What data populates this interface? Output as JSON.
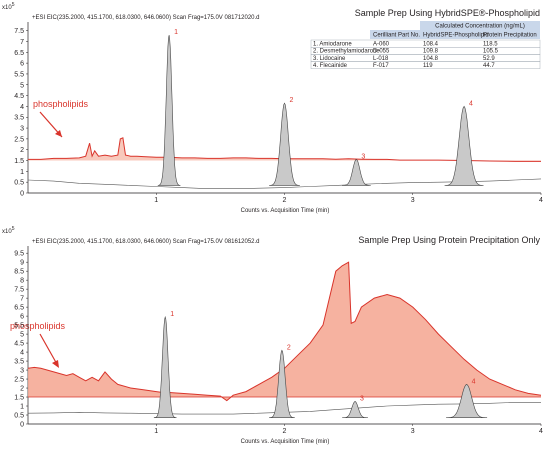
{
  "chart_data": [
    {
      "type": "line",
      "scale_label": "x10",
      "scale_exp": "5",
      "header": "+ESI EIC(235.2000, 415.1700, 618.0300, 646.0600) Scan Frag=175.0V 081712020.d",
      "title": "Sample Prep Using HybridSPE®-Phospholipid",
      "xlabel": "Counts vs. Acquisition Time (min)",
      "xlim": [
        0,
        4
      ],
      "ylim": [
        0,
        7.9
      ],
      "yticks": [
        "0",
        "0.5",
        "1",
        "1.5",
        "2",
        "2.5",
        "3",
        "3.5",
        "4",
        "4.5",
        "5",
        "5.5",
        "6",
        "6.5",
        "7",
        "7.5"
      ],
      "xticks": [
        "1",
        "2",
        "3",
        "4"
      ],
      "annotation": "phospholipids",
      "peaks": [
        {
          "label": "1",
          "x": 1.1,
          "height": 7.3,
          "width": 0.022
        },
        {
          "label": "2",
          "x": 2.0,
          "height": 4.15,
          "width": 0.03
        },
        {
          "label": "3",
          "x": 2.56,
          "height": 1.55,
          "width": 0.028
        },
        {
          "label": "4",
          "x": 3.4,
          "height": 4.0,
          "width": 0.038
        }
      ],
      "series": [
        {
          "color": "#d9342b",
          "x": [
            0,
            0.1,
            0.2,
            0.3,
            0.4,
            0.45,
            0.48,
            0.5,
            0.52,
            0.55,
            0.6,
            0.65,
            0.7,
            0.72,
            0.74,
            0.76,
            0.8,
            0.85,
            0.9,
            1.0,
            1.1,
            1.2,
            1.3,
            1.4,
            1.5,
            1.6,
            1.7,
            1.8,
            1.9,
            2.0,
            2.1,
            2.2,
            2.3,
            2.4,
            2.5,
            2.6,
            2.7,
            2.8,
            2.9,
            3.0,
            3.2,
            3.4,
            3.6,
            3.8,
            4.0
          ],
          "y": [
            1.55,
            1.55,
            1.6,
            1.6,
            1.62,
            1.7,
            2.3,
            1.7,
            1.95,
            1.7,
            1.75,
            1.7,
            1.75,
            2.5,
            2.55,
            1.75,
            1.7,
            1.7,
            1.68,
            1.65,
            1.65,
            1.62,
            1.62,
            1.6,
            1.6,
            1.62,
            1.62,
            1.6,
            1.6,
            1.58,
            1.58,
            1.58,
            1.58,
            1.56,
            1.58,
            1.56,
            1.55,
            1.55,
            1.52,
            1.52,
            1.52,
            1.5,
            1.48,
            1.46,
            1.46
          ]
        },
        {
          "color": "#555555",
          "x": [
            0,
            0.2,
            0.4,
            0.6,
            0.8,
            1.0,
            1.2,
            1.4,
            1.6,
            1.8,
            2.0,
            2.2,
            2.4,
            2.6,
            2.8,
            3.0,
            3.2,
            3.4,
            3.6,
            3.8,
            4.0
          ],
          "y": [
            0.6,
            0.55,
            0.45,
            0.4,
            0.35,
            0.3,
            0.25,
            0.2,
            0.2,
            0.22,
            0.25,
            0.3,
            0.35,
            0.4,
            0.45,
            0.48,
            0.5,
            0.52,
            0.55,
            0.6,
            0.65
          ]
        }
      ],
      "legend_table": {
        "group_header": "Calculated Concentration (ng/mL)",
        "columns": [
          "",
          "Cerilliant Part No.",
          "HybridSPE-Phospholipid",
          "Protein Precipitation"
        ],
        "rows": [
          [
            "1. Amiodarone",
            "A-060",
            "108.4",
            "118.5"
          ],
          [
            "2. Desmethylamiodarone",
            "D-055",
            "109.8",
            "105.5"
          ],
          [
            "3. Lidocaine",
            "L-018",
            "104.8",
            "52.9"
          ],
          [
            "4. Flecainide",
            "F-017",
            "119",
            "44.7"
          ]
        ]
      }
    },
    {
      "type": "area",
      "scale_label": "x10",
      "scale_exp": "5",
      "header": "+ESI EIC(235.2000, 415.1700, 618.0300, 646.0600) Scan Frag=175.0V 081612052.d",
      "title": "Sample Prep Using Protein Precipitation Only",
      "xlabel": "Counts vs. Acquisition Time (min)",
      "xlim": [
        0,
        4
      ],
      "ylim": [
        0,
        9.9
      ],
      "yticks": [
        "0",
        "0.5",
        "1",
        "1.5",
        "2",
        "2.5",
        "3",
        "3.5",
        "4",
        "4.5",
        "5",
        "5.5",
        "6",
        "6.5",
        "7",
        "7.5",
        "8",
        "8.5",
        "9",
        "9.5"
      ],
      "xticks": [
        "1",
        "2",
        "3",
        "4"
      ],
      "annotation": "phospholipids",
      "baseline": 1.5,
      "peaks": [
        {
          "label": "1",
          "x": 1.07,
          "height": 5.95,
          "width": 0.022
        },
        {
          "label": "2",
          "x": 1.98,
          "height": 4.1,
          "width": 0.025
        },
        {
          "label": "3",
          "x": 2.55,
          "height": 1.25,
          "width": 0.025
        },
        {
          "label": "4",
          "x": 3.42,
          "height": 2.2,
          "width": 0.04
        }
      ],
      "series": [
        {
          "color": "#d9342b",
          "x": [
            0,
            0.05,
            0.1,
            0.2,
            0.3,
            0.35,
            0.4,
            0.45,
            0.5,
            0.55,
            0.6,
            0.65,
            0.7,
            0.8,
            0.9,
            1.0,
            1.05,
            1.1,
            1.2,
            1.3,
            1.4,
            1.5,
            1.55,
            1.6,
            1.7,
            1.8,
            1.9,
            2.0,
            2.1,
            2.2,
            2.3,
            2.35,
            2.4,
            2.45,
            2.5,
            2.52,
            2.55,
            2.6,
            2.7,
            2.8,
            2.9,
            3.0,
            3.1,
            3.2,
            3.3,
            3.4,
            3.5,
            3.6,
            3.7,
            3.8,
            3.9,
            4.0
          ],
          "y": [
            3.1,
            3.15,
            3.1,
            2.9,
            2.7,
            2.8,
            2.6,
            2.4,
            2.6,
            2.4,
            2.9,
            2.5,
            2.2,
            2.0,
            1.9,
            1.8,
            1.75,
            1.75,
            1.7,
            1.65,
            1.6,
            1.55,
            1.3,
            1.6,
            1.8,
            2.2,
            2.6,
            3.1,
            3.8,
            4.5,
            5.5,
            7.0,
            8.5,
            8.8,
            9.0,
            5.6,
            5.7,
            6.5,
            7.0,
            7.2,
            7.0,
            6.5,
            5.8,
            5.0,
            4.3,
            3.6,
            3.0,
            2.5,
            2.2,
            1.9,
            1.7,
            1.6
          ]
        },
        {
          "color": "#555555",
          "x": [
            0,
            0.2,
            0.4,
            0.6,
            0.8,
            1.0,
            1.2,
            1.4,
            1.6,
            1.8,
            2.0,
            2.2,
            2.4,
            2.6,
            2.8,
            3.0,
            3.2,
            3.4,
            3.6,
            3.8,
            4.0
          ],
          "y": [
            0.6,
            0.62,
            0.65,
            0.62,
            0.6,
            0.58,
            0.55,
            0.55,
            0.55,
            0.6,
            0.65,
            0.7,
            0.8,
            0.9,
            1.0,
            1.05,
            1.1,
            1.12,
            1.15,
            1.2,
            1.2
          ]
        }
      ]
    }
  ]
}
